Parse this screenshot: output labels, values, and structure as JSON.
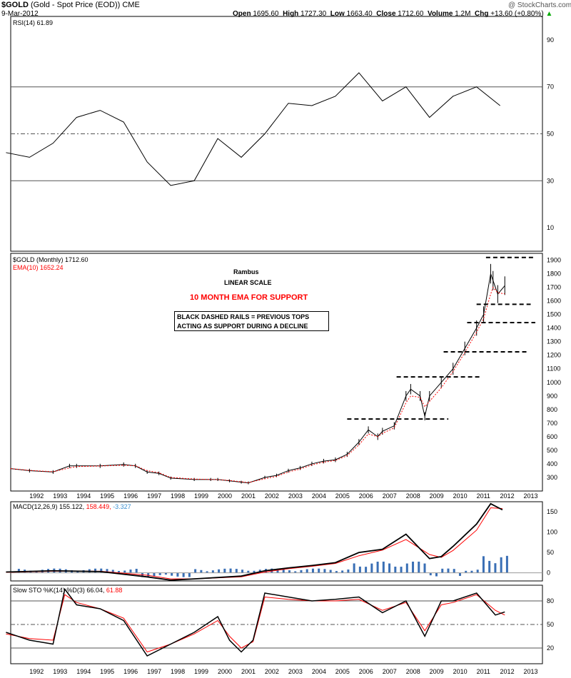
{
  "header": {
    "symbol": "$GOLD",
    "name": "(Gold - Spot Price (EOD))",
    "exchange": "CME",
    "date": "9-Mar-2012",
    "watermark": "@ StockCharts.com",
    "open_label": "Open",
    "open_value": "1695.60",
    "high_label": "High",
    "high_value": "1727.30",
    "low_label": "Low",
    "low_value": "1663.40",
    "close_label": "Close",
    "close_value": "1712.60",
    "volume_label": "Volume",
    "volume_value": "1.2M",
    "chg_label": "Chg",
    "chg_value": "+13.60 (+0.80%)",
    "chg_arrow": "▲"
  },
  "legends": {
    "rsi": "RSI(14) 61.89",
    "price": "$GOLD (Monthly) 1712.60",
    "ema": "EMA(10) 1652.24",
    "macd_name": "MACD(12,26,9)",
    "macd_v1": "155.122,",
    "macd_v2": "158.449,",
    "macd_v3": "-3.327",
    "sto": "Slow STO %K(14) %D(3) 66.04,",
    "sto_v2": "61.88"
  },
  "annotations": {
    "author": "Rambus",
    "scale": "LINEAR SCALE",
    "ema_note": "10 MONTH EMA FOR SUPPORT",
    "box_line1": "BLACK DASHED RAILS = PREVIOUS TOPS",
    "box_line2": "ACTING AS SUPPORT DURING A DECLINE"
  },
  "colors": {
    "price": "#000000",
    "ema": "#ff0000",
    "macd_line": "#000000",
    "signal_line": "#ff0000",
    "histogram": "#3a6fb5",
    "rsi_fill": "#808080",
    "v3": "#3a8fd0"
  },
  "chart_data": [
    {
      "type": "line",
      "title": "RSI(14)",
      "y_ticks": [
        "90",
        "70",
        "50",
        "30",
        "10"
      ],
      "ylim": [
        0,
        100
      ],
      "reference_lines": [
        70,
        50,
        30
      ],
      "x": [
        "1991",
        "1992",
        "1993",
        "1994",
        "1995",
        "1996",
        "1997",
        "1998",
        "1999",
        "2000",
        "2001",
        "2002",
        "2003",
        "2004",
        "2005",
        "2006",
        "2007",
        "2008",
        "2009",
        "2010",
        "2011",
        "2012"
      ],
      "values": [
        42,
        40,
        46,
        57,
        60,
        55,
        38,
        28,
        30,
        48,
        40,
        50,
        63,
        62,
        66,
        76,
        64,
        70,
        57,
        66,
        70,
        62
      ]
    },
    {
      "type": "bar",
      "title": "$GOLD (Monthly)",
      "y_ticks": [
        "1900",
        "1800",
        "1700",
        "1600",
        "1500",
        "1400",
        "1300",
        "1200",
        "1100",
        "1000",
        "900",
        "800",
        "700",
        "600",
        "500",
        "400",
        "300"
      ],
      "ylim": [
        200,
        1950
      ],
      "x_ticks": [
        "1992",
        "1993",
        "1994",
        "1995",
        "1996",
        "1997",
        "1998",
        "1999",
        "2000",
        "2001",
        "2002",
        "2003",
        "2004",
        "2005",
        "2006",
        "2007",
        "2008",
        "2009",
        "2010",
        "2011",
        "2012",
        "2013"
      ],
      "x": [
        1991.2,
        1992,
        1993,
        1993.7,
        1994,
        1995,
        1996,
        1996.5,
        1997,
        1997.5,
        1998,
        1999,
        1999.7,
        2000,
        2000.5,
        2001,
        2001.3,
        2002,
        2002.5,
        2003,
        2003.5,
        2004,
        2004.5,
        2005,
        2005.5,
        2006,
        2006.4,
        2006.8,
        2007,
        2007.5,
        2008,
        2008.2,
        2008.6,
        2008.8,
        2009,
        2009.5,
        2010,
        2010.5,
        2011,
        2011.3,
        2011.6,
        2011.7,
        2011.9,
        2012.2
      ],
      "values": [
        365,
        350,
        340,
        385,
        385,
        385,
        395,
        385,
        340,
        330,
        295,
        285,
        285,
        285,
        275,
        265,
        260,
        300,
        315,
        350,
        370,
        400,
        420,
        430,
        470,
        560,
        650,
        600,
        640,
        680,
        900,
        950,
        900,
        750,
        900,
        1000,
        1100,
        1250,
        1400,
        1500,
        1800,
        1750,
        1650,
        1712
      ],
      "ema_values": [
        365,
        352,
        342,
        370,
        380,
        384,
        390,
        386,
        350,
        335,
        300,
        288,
        285,
        284,
        278,
        268,
        262,
        290,
        308,
        340,
        362,
        392,
        412,
        425,
        460,
        540,
        620,
        600,
        625,
        665,
        850,
        900,
        890,
        820,
        860,
        960,
        1080,
        1220,
        1370,
        1470,
        1650,
        1700,
        1660,
        1652
      ],
      "support_rails": [
        {
          "level": 730,
          "from": 2005.5,
          "to": 2009.8
        },
        {
          "level": 1040,
          "from": 2007.6,
          "to": 2011.2
        },
        {
          "level": 1225,
          "from": 2009.6,
          "to": 2013.2
        },
        {
          "level": 1440,
          "from": 2010.6,
          "to": 2013.5
        },
        {
          "level": 1575,
          "from": 2011.0,
          "to": 2013.3
        },
        {
          "level": 1920,
          "from": 2011.4,
          "to": 2013.6
        }
      ]
    },
    {
      "type": "line",
      "title": "MACD(12,26,9)",
      "y_ticks": [
        "150",
        "100",
        "50",
        "0"
      ],
      "ylim": [
        -20,
        175
      ],
      "x": [
        1991,
        1993,
        1995,
        1997,
        1998,
        1999,
        2001,
        2002,
        2003,
        2004,
        2005,
        2006,
        2007,
        2008,
        2009,
        2009.5,
        2010,
        2011,
        2011.6,
        2012.1
      ],
      "macd": [
        2,
        5,
        3,
        -10,
        -18,
        -15,
        -8,
        5,
        12,
        18,
        25,
        50,
        58,
        95,
        35,
        40,
        65,
        120,
        170,
        155
      ],
      "signal": [
        1,
        4,
        4,
        -6,
        -15,
        -15,
        -10,
        2,
        10,
        16,
        23,
        42,
        56,
        82,
        45,
        38,
        55,
        105,
        160,
        158
      ],
      "histogram_peak": 40
    },
    {
      "type": "line",
      "title": "Slow STO %K(14) %D(3)",
      "y_ticks": [
        "80",
        "50",
        "20"
      ],
      "ylim": [
        0,
        100
      ],
      "reference_lines": [
        80,
        50,
        20
      ],
      "x": [
        1991,
        1992,
        1993,
        1993.5,
        1994,
        1995,
        1996,
        1997,
        1998,
        1999,
        2000,
        2000.5,
        2001,
        2001.5,
        2002,
        2003,
        2004,
        2005,
        2006,
        2007,
        2008,
        2008.8,
        2009.5,
        2010,
        2011,
        2011.8,
        2012.2
      ],
      "k": [
        40,
        30,
        25,
        95,
        75,
        70,
        55,
        10,
        25,
        40,
        60,
        30,
        15,
        30,
        90,
        85,
        80,
        82,
        85,
        65,
        80,
        35,
        80,
        80,
        90,
        62,
        66
      ],
      "d": [
        38,
        32,
        30,
        88,
        78,
        70,
        58,
        15,
        25,
        38,
        55,
        35,
        20,
        28,
        85,
        82,
        80,
        80,
        82,
        68,
        78,
        42,
        75,
        78,
        88,
        68,
        62
      ]
    }
  ],
  "x_axis_years": [
    "1992",
    "1993",
    "1994",
    "1995",
    "1996",
    "1997",
    "1998",
    "1999",
    "2000",
    "2001",
    "2002",
    "2003",
    "2004",
    "2005",
    "2006",
    "2007",
    "2008",
    "2009",
    "2010",
    "2011",
    "2012",
    "2013"
  ]
}
